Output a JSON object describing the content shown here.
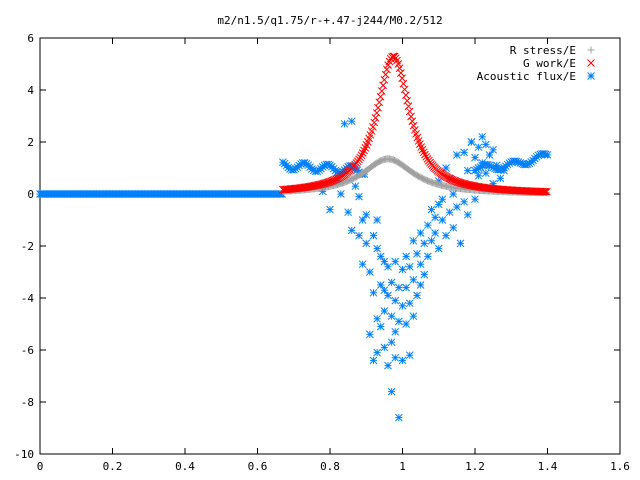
{
  "chart_data": {
    "type": "scatter",
    "title": "m2/n1.5/q1.75/r-+.47-j244/M0.2/512",
    "xlabel": "",
    "ylabel": "",
    "xlim": [
      0,
      1.6
    ],
    "ylim": [
      -10,
      6
    ],
    "x_ticks": [
      0,
      0.2,
      0.4,
      0.6,
      0.8,
      1,
      1.2,
      1.4,
      1.6
    ],
    "y_ticks": [
      -10,
      -8,
      -6,
      -4,
      -2,
      0,
      2,
      4,
      6
    ],
    "x_tick_labels": [
      "0",
      "0.2",
      "0.4",
      "0.6",
      "0.8",
      "1",
      "1.2",
      "1.4",
      "1.6"
    ],
    "y_tick_labels": [
      "-10",
      "-8",
      "-6",
      "-4",
      "-2",
      "0",
      "2",
      "4",
      "6"
    ],
    "grid": false,
    "legend_position": "top-right",
    "series": [
      {
        "name": "R stress/E",
        "marker": "plus",
        "color": "#a0a0a0",
        "model": "lorentzian",
        "x_range": [
          0.67,
          1.4
        ],
        "peak_x": 0.96,
        "peak_y": 1.35,
        "half_width": 0.085
      },
      {
        "name": "G work/E",
        "marker": "x",
        "color": "#ff0000",
        "model": "lorentzian",
        "x_range": [
          0.67,
          1.4
        ],
        "peak_x": 0.975,
        "peak_y": 5.3,
        "half_width": 0.055
      },
      {
        "name": "Acoustic flux/E",
        "marker": "star",
        "color": "#0080ff",
        "baseline": {
          "flat_range": [
            0,
            0.67
          ],
          "flat_y": 0,
          "left_band_range": [
            0.67,
            0.9
          ],
          "left_band_y": [
            1.1,
            0.9
          ],
          "right_band_range": [
            1.2,
            1.4
          ],
          "right_band_y": [
            1.0,
            1.5
          ]
        },
        "scatter_points": [
          [
            0.78,
            0.1
          ],
          [
            0.8,
            -0.6
          ],
          [
            0.82,
            0.5
          ],
          [
            0.83,
            0.0
          ],
          [
            0.84,
            2.7
          ],
          [
            0.85,
            -0.7
          ],
          [
            0.86,
            2.8
          ],
          [
            0.86,
            -1.4
          ],
          [
            0.87,
            0.3
          ],
          [
            0.88,
            -0.1
          ],
          [
            0.88,
            -1.6
          ],
          [
            0.89,
            -1.0
          ],
          [
            0.89,
            -2.7
          ],
          [
            0.9,
            -0.8
          ],
          [
            0.9,
            -1.9
          ],
          [
            0.91,
            -3.0
          ],
          [
            0.91,
            -5.4
          ],
          [
            0.92,
            -1.6
          ],
          [
            0.92,
            -3.8
          ],
          [
            0.92,
            -6.4
          ],
          [
            0.93,
            -1.0
          ],
          [
            0.93,
            -2.1
          ],
          [
            0.93,
            -4.8
          ],
          [
            0.93,
            -6.1
          ],
          [
            0.94,
            -2.4
          ],
          [
            0.94,
            -3.5
          ],
          [
            0.94,
            -5.1
          ],
          [
            0.95,
            -2.6
          ],
          [
            0.95,
            -3.7
          ],
          [
            0.95,
            -5.9
          ],
          [
            0.95,
            -4.5
          ],
          [
            0.96,
            -2.8
          ],
          [
            0.96,
            -3.9
          ],
          [
            0.96,
            -6.6
          ],
          [
            0.97,
            -3.4
          ],
          [
            0.97,
            -4.7
          ],
          [
            0.97,
            -5.7
          ],
          [
            0.97,
            -7.6
          ],
          [
            0.98,
            -2.6
          ],
          [
            0.98,
            -4.1
          ],
          [
            0.98,
            -5.3
          ],
          [
            0.98,
            -6.3
          ],
          [
            0.99,
            -3.6
          ],
          [
            0.99,
            -4.9
          ],
          [
            0.99,
            -8.6
          ],
          [
            1.0,
            -2.9
          ],
          [
            1.0,
            -4.3
          ],
          [
            1.0,
            -6.4
          ],
          [
            1.01,
            -2.4
          ],
          [
            1.01,
            -3.6
          ],
          [
            1.01,
            -5.0
          ],
          [
            1.02,
            -2.8
          ],
          [
            1.02,
            -4.2
          ],
          [
            1.02,
            -6.2
          ],
          [
            1.03,
            -1.8
          ],
          [
            1.03,
            -3.3
          ],
          [
            1.03,
            -4.7
          ],
          [
            1.04,
            -2.3
          ],
          [
            1.04,
            -3.9
          ],
          [
            1.05,
            -1.5
          ],
          [
            1.05,
            -2.7
          ],
          [
            1.05,
            -3.5
          ],
          [
            1.06,
            -1.9
          ],
          [
            1.06,
            -3.1
          ],
          [
            1.07,
            -1.2
          ],
          [
            1.07,
            -2.4
          ],
          [
            1.08,
            -0.6
          ],
          [
            1.08,
            -1.8
          ],
          [
            1.09,
            -0.9
          ],
          [
            1.09,
            -1.5
          ],
          [
            1.1,
            -0.4
          ],
          [
            1.1,
            -2.1
          ],
          [
            1.1,
            0.5
          ],
          [
            1.11,
            -1.0
          ],
          [
            1.11,
            -0.2
          ],
          [
            1.12,
            -1.6
          ],
          [
            1.12,
            1.0
          ],
          [
            1.13,
            -0.7
          ],
          [
            1.13,
            0.6
          ],
          [
            1.14,
            0.0
          ],
          [
            1.14,
            -1.3
          ],
          [
            1.15,
            1.5
          ],
          [
            1.15,
            -0.5
          ],
          [
            1.16,
            0.4
          ],
          [
            1.16,
            -1.9
          ],
          [
            1.17,
            1.6
          ],
          [
            1.17,
            -0.3
          ],
          [
            1.18,
            0.9
          ],
          [
            1.18,
            -0.8
          ],
          [
            1.19,
            0.3
          ],
          [
            1.19,
            2.0
          ],
          [
            1.2,
            1.4
          ],
          [
            1.2,
            -0.2
          ],
          [
            1.21,
            0.7
          ],
          [
            1.21,
            1.8
          ],
          [
            1.22,
            0.2
          ],
          [
            1.22,
            1.2
          ],
          [
            1.23,
            0.8
          ],
          [
            1.24,
            1.5
          ],
          [
            1.25,
            0.4
          ],
          [
            1.26,
            1.1
          ],
          [
            1.27,
            0.6
          ],
          [
            1.28,
            0.9
          ],
          [
            1.19,
            2.0
          ],
          [
            1.23,
            1.9
          ],
          [
            1.25,
            1.7
          ],
          [
            1.22,
            2.2
          ],
          [
            1.21,
            1.0
          ]
        ]
      }
    ]
  }
}
